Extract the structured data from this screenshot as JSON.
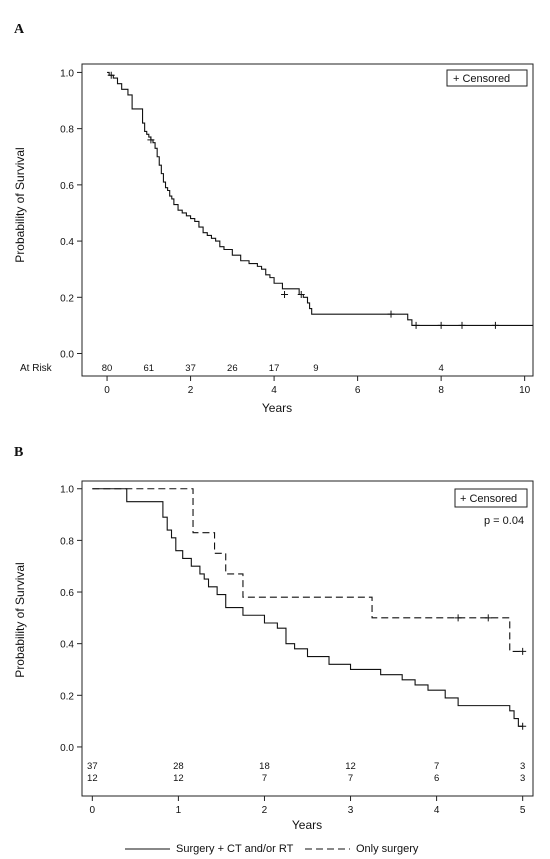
{
  "chart_data": [
    {
      "type": "line",
      "panel_label": "A",
      "xlabel": "Years",
      "ylabel": "Probability of Survival",
      "xlim": [
        -0.6,
        10.2
      ],
      "ylim": [
        -0.08,
        1.03
      ],
      "xticks": [
        "0",
        "2",
        "4",
        "6",
        "8",
        "10"
      ],
      "yticks": [
        "0.0",
        "0.2",
        "0.4",
        "0.6",
        "0.8",
        "1.0"
      ],
      "legend": {
        "text": "+ Censored",
        "position": "top-right"
      },
      "at_risk": {
        "label": "At Risk",
        "x": [
          0,
          1,
          2,
          3,
          4,
          5,
          8
        ],
        "values": [
          "80",
          "61",
          "37",
          "26",
          "17",
          "9",
          "4"
        ]
      },
      "series": [
        {
          "style": "solid",
          "x": [
            0,
            0.05,
            0.15,
            0.25,
            0.35,
            0.5,
            0.6,
            0.85,
            0.9,
            0.95,
            1.0,
            1.05,
            1.1,
            1.15,
            1.2,
            1.25,
            1.3,
            1.35,
            1.4,
            1.45,
            1.5,
            1.55,
            1.6,
            1.7,
            1.8,
            1.9,
            2.0,
            2.1,
            2.2,
            2.3,
            2.4,
            2.5,
            2.6,
            2.7,
            2.8,
            3.0,
            3.2,
            3.4,
            3.6,
            3.7,
            3.8,
            3.9,
            4.0,
            4.2,
            4.6,
            4.7,
            4.8,
            4.85,
            4.9,
            7.1,
            7.2,
            7.3,
            10.2
          ],
          "y": [
            1.0,
            0.99,
            0.98,
            0.96,
            0.94,
            0.92,
            0.87,
            0.82,
            0.79,
            0.78,
            0.77,
            0.76,
            0.75,
            0.73,
            0.7,
            0.67,
            0.64,
            0.61,
            0.59,
            0.58,
            0.56,
            0.55,
            0.53,
            0.51,
            0.5,
            0.49,
            0.48,
            0.47,
            0.45,
            0.43,
            0.42,
            0.41,
            0.4,
            0.38,
            0.37,
            0.35,
            0.33,
            0.32,
            0.31,
            0.3,
            0.28,
            0.27,
            0.25,
            0.23,
            0.21,
            0.2,
            0.18,
            0.16,
            0.14,
            0.14,
            0.12,
            0.1,
            0.1
          ],
          "censored": [
            [
              0.1,
              0.99
            ],
            [
              1.05,
              0.76
            ],
            [
              4.25,
              0.21
            ],
            [
              4.65,
              0.21
            ],
            [
              6.8,
              0.14
            ],
            [
              7.4,
              0.1
            ],
            [
              8.0,
              0.1
            ],
            [
              8.5,
              0.1
            ],
            [
              9.3,
              0.1
            ]
          ]
        }
      ]
    },
    {
      "type": "line",
      "panel_label": "B",
      "xlabel": "Years",
      "ylabel": "Probability of Survival",
      "xlim": [
        -0.12,
        5.12
      ],
      "ylim": [
        -0.19,
        1.03
      ],
      "xticks": [
        "0",
        "1",
        "2",
        "3",
        "4",
        "5"
      ],
      "yticks": [
        "0.0",
        "0.2",
        "0.4",
        "0.6",
        "0.8",
        "1.0"
      ],
      "legend": {
        "text": "+ Censored",
        "position": "top-right"
      },
      "annotation": "p = 0.04",
      "at_risk": {
        "x": [
          0,
          1,
          2,
          3,
          4,
          5
        ],
        "rows": [
          [
            "37",
            "28",
            "18",
            "12",
            "7",
            "3"
          ],
          [
            "12",
            "12",
            "7",
            "7",
            "6",
            "3"
          ]
        ]
      },
      "series": [
        {
          "name": "Surgery + CT and/or RT",
          "style": "solid",
          "x": [
            0,
            0.4,
            0.82,
            0.87,
            0.92,
            0.97,
            1.05,
            1.15,
            1.25,
            1.3,
            1.35,
            1.45,
            1.55,
            1.75,
            2.0,
            2.15,
            2.25,
            2.35,
            2.5,
            2.75,
            3.0,
            3.35,
            3.6,
            3.75,
            3.9,
            4.1,
            4.25,
            4.85,
            4.9,
            4.95,
            5.0
          ],
          "y": [
            1.0,
            0.95,
            0.89,
            0.84,
            0.81,
            0.76,
            0.73,
            0.7,
            0.67,
            0.65,
            0.62,
            0.59,
            0.54,
            0.51,
            0.48,
            0.46,
            0.4,
            0.38,
            0.35,
            0.32,
            0.3,
            0.28,
            0.26,
            0.24,
            0.22,
            0.19,
            0.16,
            0.14,
            0.11,
            0.08,
            0.08
          ],
          "censored": [
            [
              5.0,
              0.08
            ]
          ]
        },
        {
          "name": "Only surgery",
          "style": "dashed",
          "x": [
            0,
            1.17,
            1.42,
            1.55,
            1.75,
            3.25,
            4.85,
            5.0
          ],
          "y": [
            1.0,
            0.83,
            0.75,
            0.67,
            0.58,
            0.5,
            0.37,
            0.37
          ],
          "censored": [
            [
              4.25,
              0.5
            ],
            [
              4.6,
              0.5
            ],
            [
              5.0,
              0.37
            ]
          ]
        }
      ]
    }
  ]
}
